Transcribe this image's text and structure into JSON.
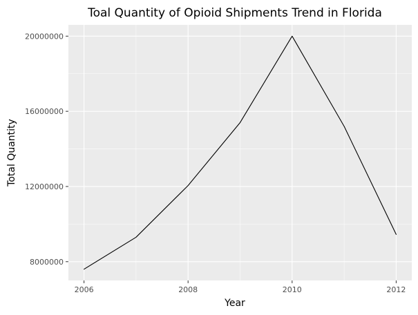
{
  "chart_data": {
    "type": "line",
    "title": "Toal Quantity of Opioid Shipments Trend in Florida",
    "xlabel": "Year",
    "ylabel": "Total Quantity",
    "x": [
      2006,
      2007,
      2008,
      2009,
      2010,
      2011,
      2012
    ],
    "values": [
      7600000,
      9300000,
      12050000,
      15400000,
      20000000,
      15200000,
      9450000
    ],
    "xlim": [
      2005.7,
      2012.3
    ],
    "ylim": [
      7000000,
      20600000
    ],
    "x_ticks": [
      2006,
      2008,
      2010,
      2012
    ],
    "y_ticks": [
      8000000,
      12000000,
      16000000,
      20000000
    ],
    "x_tick_labels": [
      "2006",
      "2008",
      "2010",
      "2012"
    ],
    "y_tick_labels": [
      "8000000",
      "12000000",
      "16000000",
      "20000000"
    ],
    "grid": true,
    "colors": {
      "panel": "#ebebeb",
      "grid": "#ffffff",
      "line": "#000000"
    }
  }
}
